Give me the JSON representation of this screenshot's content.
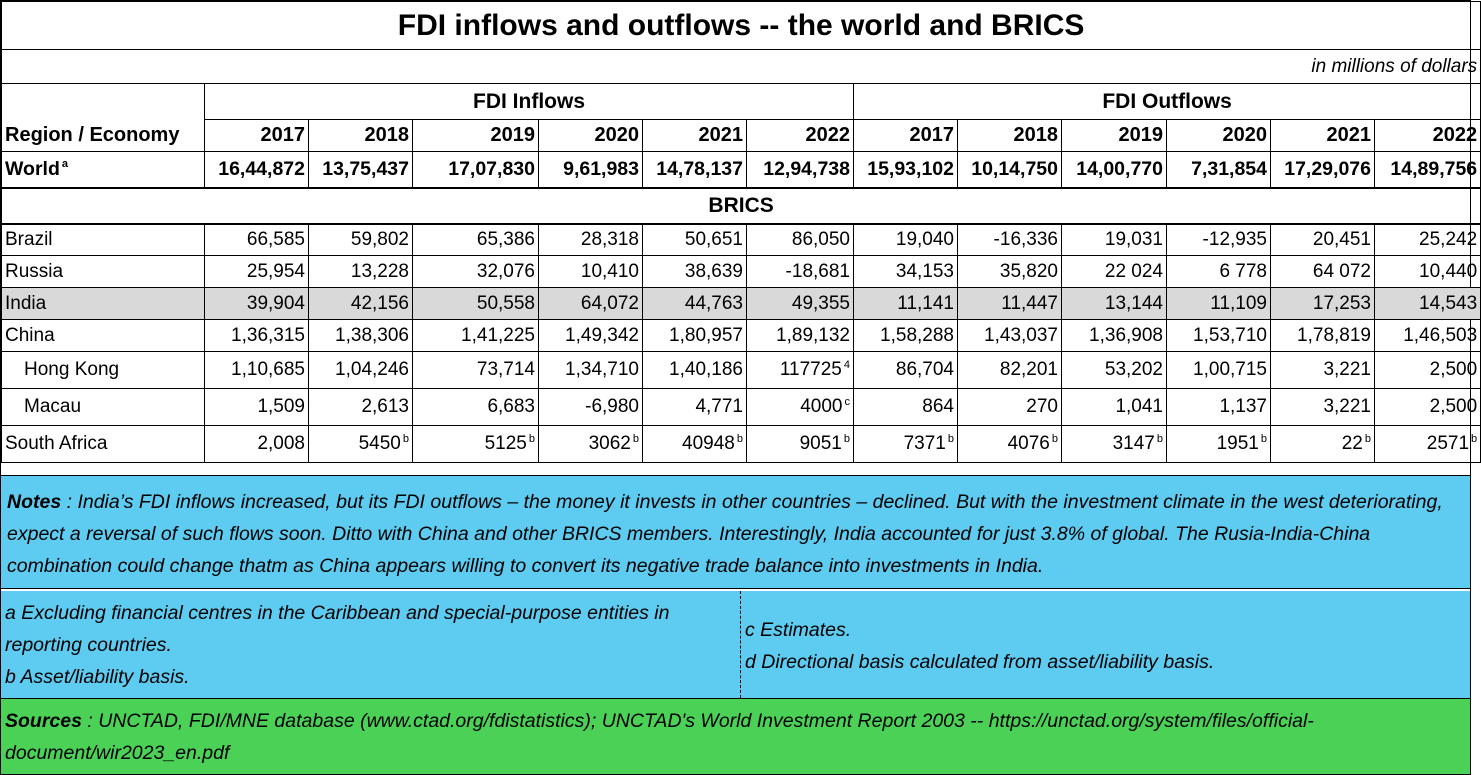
{
  "chart_data": {
    "type": "table",
    "title": "FDI inflows and outflows -- the world and BRICS",
    "units": "in millions of dollars",
    "groups": [
      "FDI Inflows",
      "FDI Outflows"
    ],
    "region_header": "Region  /  Economy",
    "years": [
      "2017",
      "2018",
      "2019",
      "2020",
      "2021",
      "2022"
    ],
    "world": {
      "label": "World",
      "sup": "a",
      "values": [
        "16,44,872",
        "13,75,437",
        "17,07,830",
        "9,61,983",
        "14,78,137",
        "12,94,738",
        "15,93,102",
        "10,14,750",
        "14,00,770",
        "7,31,854",
        "17,29,076",
        "14,89,756"
      ]
    },
    "section_label": "BRICS",
    "rows": [
      {
        "label": "Brazil",
        "indent": false,
        "highlight": false,
        "values": [
          "66,585",
          "59,802",
          "65,386",
          "28,318",
          "50,651",
          "86,050",
          "19,040",
          "-16,336",
          "19,031",
          "-12,935",
          "20,451",
          "25,242"
        ],
        "sups": [
          "",
          "",
          "",
          "",
          "",
          "",
          "",
          "",
          "",
          "",
          "",
          ""
        ]
      },
      {
        "label": "Russia",
        "indent": false,
        "highlight": false,
        "values": [
          "25,954",
          "13,228",
          "32,076",
          "10,410",
          "38,639",
          "-18,681",
          "34,153",
          "35,820",
          "22 024",
          "6 778",
          "64 072",
          "10,440"
        ],
        "sups": [
          "",
          "",
          "",
          "",
          "",
          "",
          "",
          "",
          "",
          "",
          "",
          ""
        ]
      },
      {
        "label": "India",
        "indent": false,
        "highlight": true,
        "values": [
          "39,904",
          "42,156",
          "50,558",
          "64,072",
          "44,763",
          "49,355",
          "11,141",
          "11,447",
          "13,144",
          "11,109",
          "17,253",
          "14,543"
        ],
        "sups": [
          "",
          "",
          "",
          "",
          "",
          "",
          "",
          "",
          "",
          "",
          "",
          ""
        ]
      },
      {
        "label": "China",
        "indent": false,
        "highlight": false,
        "values": [
          "1,36,315",
          "1,38,306",
          "1,41,225",
          "1,49,342",
          "1,80,957",
          "1,89,132",
          "1,58,288",
          "1,43,037",
          "1,36,908",
          "1,53,710",
          "1,78,819",
          "1,46,503"
        ],
        "sups": [
          "",
          "",
          "",
          "",
          "",
          "",
          "",
          "",
          "",
          "",
          "",
          ""
        ]
      },
      {
        "label": "Hong Kong",
        "indent": true,
        "highlight": false,
        "values": [
          "1,10,685",
          "1,04,246",
          "73,714",
          "1,34,710",
          "1,40,186",
          "117725",
          "86,704",
          "82,201",
          "53,202",
          "1,00,715",
          "3,221",
          "2,500"
        ],
        "sups": [
          "",
          "",
          "",
          "",
          "",
          "4",
          "",
          "",
          "",
          "",
          "",
          ""
        ]
      },
      {
        "label": "Macau",
        "indent": true,
        "highlight": false,
        "values": [
          "1,509",
          "2,613",
          "6,683",
          "-6,980",
          "4,771",
          "4000",
          "864",
          "270",
          "1,041",
          "1,137",
          "3,221",
          "2,500"
        ],
        "sups": [
          "",
          "",
          "",
          "",
          "",
          "c",
          "",
          "",
          "",
          "",
          "",
          ""
        ]
      },
      {
        "label": "South Africa",
        "indent": false,
        "highlight": false,
        "values": [
          "2,008",
          "5450",
          "5125",
          "3062",
          "40948",
          "9051",
          "7371",
          "4076",
          "3147",
          "1951",
          "22",
          "2571"
        ],
        "sups": [
          "",
          "b",
          "b",
          "b",
          "b",
          "b",
          "b",
          "b",
          "b",
          "b",
          "b",
          "b"
        ]
      }
    ]
  },
  "notes": {
    "label": "Notes",
    "text": " :  India’s FDI inflows increased, but its FDI outflows – the money it invests in other countries – declined.  But with the investment climate in the west deteriorating, expect a reversal of such flows soon. Ditto with China and other BRICS members. Interestingly, India accounted for just 3.8% of global. The Rusia-India-China combination could change thatm as China appears willing to convert its negative trade balance into investments in India."
  },
  "footnotes": {
    "a": "a Excluding financial centres in the Caribbean and special-purpose entities in reporting countries.",
    "b": "b Asset/liability basis.",
    "c": "c Estimates.",
    "d": "d Directional basis calculated from asset/liability basis."
  },
  "sources": {
    "label": "Sources",
    "text": " : UNCTAD, FDI/MNE database (www.ctad.org/fdistatistics); UNCTAD's World Investment Report 2003 -- https://unctad.org/system/files/official-document/wir2023_en.pdf"
  },
  "colors": {
    "notes_bg": "#5ecbf1",
    "sources_bg": "#4cd157",
    "highlight_row": "#d9d9d9"
  }
}
